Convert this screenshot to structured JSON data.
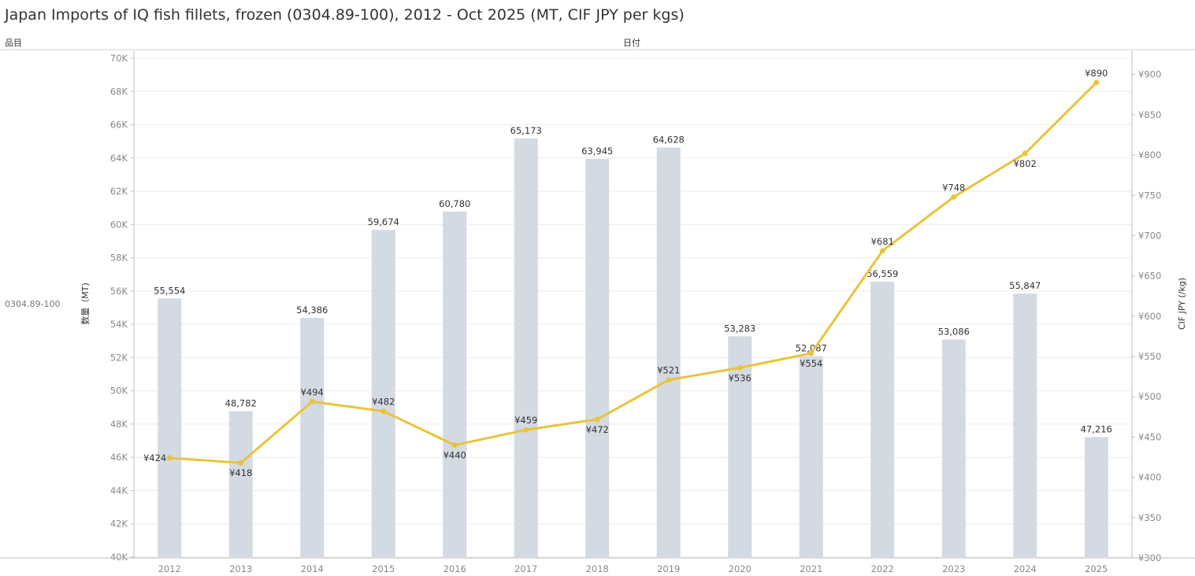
{
  "title": "Japan Imports of IQ fish fillets, frozen (0304.89-100), 2012 - Oct 2025 (MT, CIF JPY per kgs)",
  "header": {
    "row_field": "品目",
    "col_field": "日付"
  },
  "row_value": "0304.89-100",
  "colors": {
    "bar": "#d4dae2",
    "line": "#e8c43c",
    "grid": "#ececec",
    "axis": "#bdbdbd"
  },
  "chart_data": {
    "type": "bar+line",
    "categories": [
      "2012",
      "2013",
      "2014",
      "2015",
      "2016",
      "2017",
      "2018",
      "2019",
      "2020",
      "2021",
      "2022",
      "2023",
      "2024",
      "2025"
    ],
    "series": [
      {
        "name": "数量（MT)",
        "type": "bar",
        "axis": "left",
        "values": [
          55554,
          48782,
          54386,
          59674,
          60780,
          65173,
          63945,
          64628,
          53283,
          52087,
          56559,
          53086,
          55847,
          47216
        ],
        "labels": [
          "55,554",
          "48,782",
          "54,386",
          "59,674",
          "60,780",
          "65,173",
          "63,945",
          "64,628",
          "53,283",
          "52,087",
          "56,559",
          "53,086",
          "55,847",
          "47,216"
        ]
      },
      {
        "name": "CIF JPY (/kg)",
        "type": "line",
        "axis": "right",
        "values": [
          424,
          418,
          494,
          482,
          440,
          459,
          472,
          521,
          536,
          554,
          681,
          748,
          802,
          890
        ],
        "labels": [
          "¥424",
          "¥418",
          "¥494",
          "¥482",
          "¥440",
          "¥459",
          "¥472",
          "¥521",
          "¥536",
          "¥554",
          "¥681",
          "¥748",
          "¥802",
          "¥890"
        ]
      }
    ],
    "ylabel_left": "数量（MT)",
    "ylabel_right": "CIF JPY (/kg)",
    "ylim_left": [
      40000,
      70000
    ],
    "ylim_right": [
      300,
      930
    ],
    "yticks_left": [
      "40K",
      "42K",
      "44K",
      "46K",
      "48K",
      "50K",
      "52K",
      "54K",
      "56K",
      "58K",
      "60K",
      "62K",
      "64K",
      "66K",
      "68K",
      "70K"
    ],
    "yticks_left_values": [
      40000,
      42000,
      44000,
      46000,
      48000,
      50000,
      52000,
      54000,
      56000,
      58000,
      60000,
      62000,
      64000,
      66000,
      68000,
      70000
    ],
    "yticks_right": [
      "¥300",
      "¥350",
      "¥400",
      "¥450",
      "¥500",
      "¥550",
      "¥600",
      "¥650",
      "¥700",
      "¥750",
      "¥800",
      "¥850",
      "¥900"
    ],
    "yticks_right_values": [
      300,
      350,
      400,
      450,
      500,
      550,
      600,
      650,
      700,
      750,
      800,
      850,
      900
    ],
    "line_label_position": [
      "left",
      "below",
      "above",
      "above",
      "below",
      "above",
      "below",
      "above",
      "below",
      "below",
      "above",
      "above",
      "below",
      "above"
    ],
    "grid": true
  }
}
